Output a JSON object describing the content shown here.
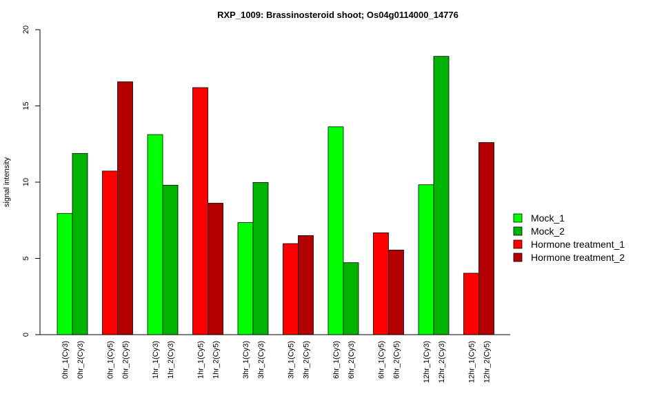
{
  "chart_data": {
    "type": "bar",
    "title": "RXP_1009: Brassinosteroid shoot; Os04g0114000_14776",
    "ylabel": "signal intensity",
    "xlabel": "",
    "ylim": [
      0,
      20
    ],
    "yticks": [
      0,
      5,
      10,
      15,
      20
    ],
    "grid": false,
    "legend_position": "right",
    "groups": [
      {
        "bars": [
          {
            "label": "0hr_1(Cy3)",
            "value": 7.95,
            "series": "Mock_1"
          },
          {
            "label": "0hr_2(Cy3)",
            "value": 11.88,
            "series": "Mock_2"
          }
        ]
      },
      {
        "bars": [
          {
            "label": "0hr_1(Cy5)",
            "value": 10.73,
            "series": "Hormone treatment_1"
          },
          {
            "label": "0hr_2(Cy5)",
            "value": 16.58,
            "series": "Hormone treatment_2"
          }
        ]
      },
      {
        "bars": [
          {
            "label": "1hr_1(Cy3)",
            "value": 13.12,
            "series": "Mock_1"
          },
          {
            "label": "1hr_2(Cy3)",
            "value": 9.8,
            "series": "Mock_2"
          }
        ]
      },
      {
        "bars": [
          {
            "label": "1hr_1(Cy5)",
            "value": 16.2,
            "series": "Hormone treatment_1"
          },
          {
            "label": "1hr_2(Cy5)",
            "value": 8.62,
            "series": "Hormone treatment_2"
          }
        ]
      },
      {
        "bars": [
          {
            "label": "3hr_1(Cy3)",
            "value": 7.35,
            "series": "Mock_1"
          },
          {
            "label": "3hr_2(Cy3)",
            "value": 9.98,
            "series": "Mock_2"
          }
        ]
      },
      {
        "bars": [
          {
            "label": "3hr_1(Cy5)",
            "value": 5.97,
            "series": "Hormone treatment_1"
          },
          {
            "label": "3hr_2(Cy5)",
            "value": 6.5,
            "series": "Hormone treatment_2"
          }
        ]
      },
      {
        "bars": [
          {
            "label": "6hr_1(Cy3)",
            "value": 13.63,
            "series": "Mock_1"
          },
          {
            "label": "6hr_2(Cy3)",
            "value": 4.72,
            "series": "Mock_2"
          }
        ]
      },
      {
        "bars": [
          {
            "label": "6hr_1(Cy5)",
            "value": 6.68,
            "series": "Hormone treatment_1"
          },
          {
            "label": "6hr_2(Cy5)",
            "value": 5.55,
            "series": "Hormone treatment_2"
          }
        ]
      },
      {
        "bars": [
          {
            "label": "12hr_1(Cy3)",
            "value": 9.83,
            "series": "Mock_1"
          },
          {
            "label": "12hr_2(Cy3)",
            "value": 18.25,
            "series": "Mock_2"
          }
        ]
      },
      {
        "bars": [
          {
            "label": "12hr_1(Cy5)",
            "value": 4.03,
            "series": "Hormone treatment_1"
          },
          {
            "label": "12hr_2(Cy5)",
            "value": 12.6,
            "series": "Hormone treatment_2"
          }
        ]
      }
    ],
    "series": [
      {
        "name": "Mock_1",
        "color": "#00ff00"
      },
      {
        "name": "Mock_2",
        "color": "#00b300"
      },
      {
        "name": "Hormone treatment_1",
        "color": "#ff0000"
      },
      {
        "name": "Hormone treatment_2",
        "color": "#b30000"
      }
    ]
  }
}
